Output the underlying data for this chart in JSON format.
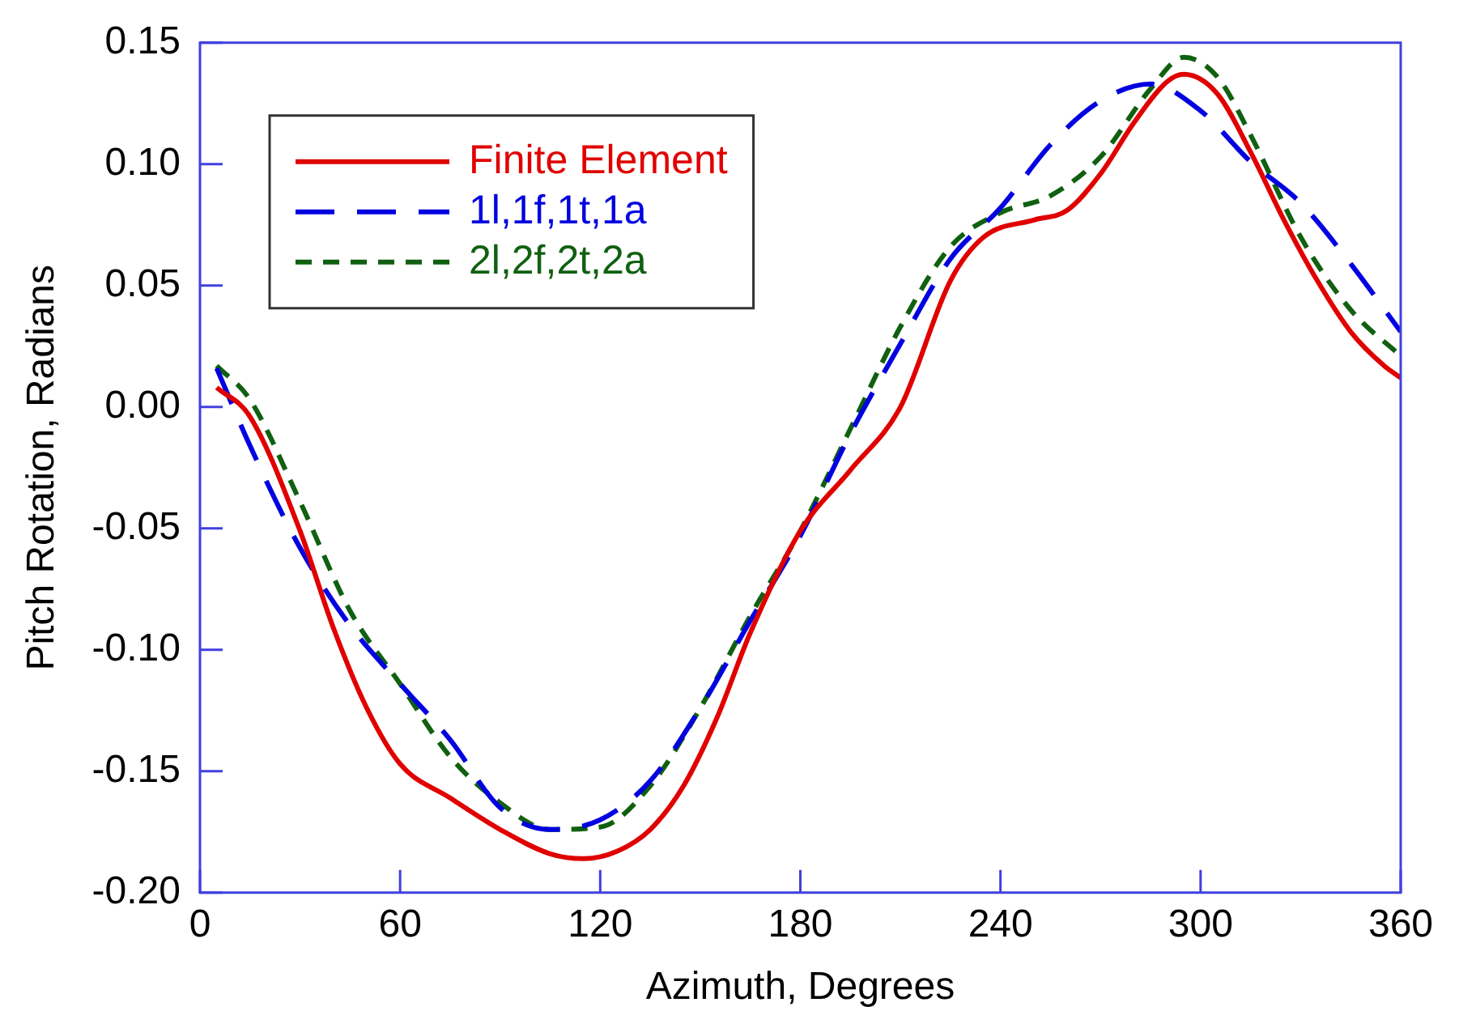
{
  "chart_data": {
    "type": "line",
    "xlabel": "Azimuth, Degrees",
    "ylabel": "Pitch Rotation, Radians",
    "xlim": [
      0,
      360
    ],
    "xticks": [
      0,
      60,
      120,
      180,
      240,
      300,
      360
    ],
    "ylim": [
      -0.2,
      0.15
    ],
    "yticks": [
      {
        "value": -0.2,
        "label": "-0.20"
      },
      {
        "value": -0.15,
        "label": "-0.15"
      },
      {
        "value": -0.1,
        "label": "-0.10"
      },
      {
        "value": -0.05,
        "label": "-0.05"
      },
      {
        "value": 0,
        "label": "0.00"
      },
      {
        "value": 0.05,
        "label": "0.05"
      },
      {
        "value": 0.1,
        "label": "0.10"
      },
      {
        "value": 0.15,
        "label": "0.15"
      }
    ],
    "grid": false,
    "legend": "top left",
    "marker": "none",
    "series": [
      {
        "name": "Finite Element",
        "color": "#e00000",
        "line_style": "solid",
        "x": [
          5,
          15,
          30,
          40,
          50,
          60,
          75,
          90,
          105,
          115,
          125,
          135,
          145,
          155,
          165,
          180,
          195,
          210,
          225,
          235,
          250,
          260,
          270,
          280,
          290,
          295,
          305,
          315,
          325,
          335,
          345,
          355,
          360
        ],
        "values": [
          0.008,
          -0.004,
          -0.051,
          -0.091,
          -0.124,
          -0.147,
          -0.161,
          -0.174,
          -0.184,
          -0.186,
          -0.183,
          -0.174,
          -0.156,
          -0.128,
          -0.093,
          -0.051,
          -0.026,
          0.0,
          0.052,
          0.07,
          0.077,
          0.081,
          0.096,
          0.117,
          0.134,
          0.137,
          0.129,
          0.105,
          0.077,
          0.052,
          0.031,
          0.017,
          0.012
        ]
      },
      {
        "name": "1l,1f,1t,1a",
        "color": "#0000e0",
        "line_style": "dashed",
        "x": [
          5,
          15,
          30,
          45,
          60,
          75,
          90,
          105,
          120,
          135,
          150,
          165,
          180,
          195,
          210,
          225,
          240,
          255,
          270,
          285,
          300,
          315,
          330,
          345,
          360
        ],
        "values": [
          0.016,
          -0.016,
          -0.058,
          -0.09,
          -0.114,
          -0.137,
          -0.165,
          -0.174,
          -0.17,
          -0.154,
          -0.124,
          -0.088,
          -0.053,
          -0.011,
          0.026,
          0.061,
          0.082,
          0.108,
          0.126,
          0.133,
          0.122,
          0.101,
          0.084,
          0.059,
          0.031
        ]
      },
      {
        "name": "2l,2f,2t,2a",
        "color": "#106010",
        "line_style": "dotted",
        "x": [
          5,
          15,
          30,
          45,
          60,
          75,
          90,
          105,
          120,
          135,
          150,
          165,
          180,
          195,
          210,
          225,
          240,
          255,
          270,
          285,
          295,
          305,
          315,
          330,
          345,
          360
        ],
        "values": [
          0.017,
          0.003,
          -0.039,
          -0.084,
          -0.114,
          -0.144,
          -0.163,
          -0.174,
          -0.173,
          -0.156,
          -0.124,
          -0.086,
          -0.051,
          -0.009,
          0.033,
          0.066,
          0.08,
          0.087,
          0.103,
          0.131,
          0.144,
          0.136,
          0.112,
          0.07,
          0.04,
          0.021
        ]
      }
    ]
  }
}
